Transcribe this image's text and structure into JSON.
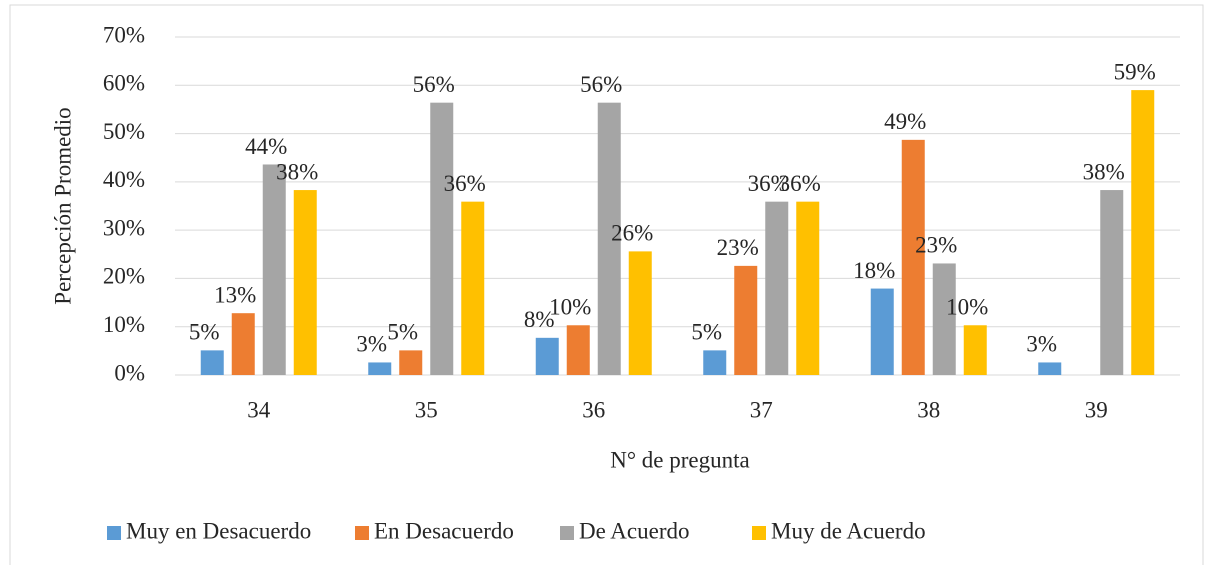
{
  "chart_data": {
    "type": "bar",
    "categories": [
      "34",
      "35",
      "36",
      "37",
      "38",
      "39"
    ],
    "series": [
      {
        "name": "Muy en Desacuerdo",
        "color": "#5b9bd5",
        "values": [
          5.1,
          2.6,
          7.7,
          5.1,
          17.9,
          2.6
        ],
        "value_labels": [
          "5%",
          "3%",
          "8%",
          "5%",
          "18%",
          "3%"
        ]
      },
      {
        "name": "En Desacuerdo",
        "color": "#ed7d31",
        "values": [
          12.8,
          5.1,
          10.3,
          22.6,
          48.7,
          null
        ],
        "value_labels": [
          "13%",
          "5%",
          "10%",
          "23%",
          "49%",
          null
        ]
      },
      {
        "name": "De Acuerdo",
        "color": "#a5a5a5",
        "values": [
          43.6,
          56.4,
          56.4,
          35.9,
          23.1,
          38.3
        ],
        "value_labels": [
          "44%",
          "56%",
          "56%",
          "36%",
          "23%",
          "38%"
        ]
      },
      {
        "name": "Muy de Acuerdo",
        "color": "#ffc000",
        "values": [
          38.3,
          35.9,
          25.6,
          35.9,
          10.3,
          59.0
        ],
        "value_labels": [
          "38%",
          "36%",
          "26%",
          "36%",
          "10%",
          "59%"
        ]
      }
    ],
    "ylim": [
      0,
      70
    ],
    "yticks": [
      {
        "value": 0,
        "label": "0%"
      },
      {
        "value": 10,
        "label": "10%"
      },
      {
        "value": 20,
        "label": "20%"
      },
      {
        "value": 30,
        "label": "30%"
      },
      {
        "value": 40,
        "label": "40%"
      },
      {
        "value": 50,
        "label": "50%"
      },
      {
        "value": 60,
        "label": "60%"
      },
      {
        "value": 70,
        "label": "70%"
      }
    ],
    "grid": true,
    "y_label": "Percepción Promedio",
    "x_label": "N° de pregunta",
    "legend": "bottom"
  }
}
